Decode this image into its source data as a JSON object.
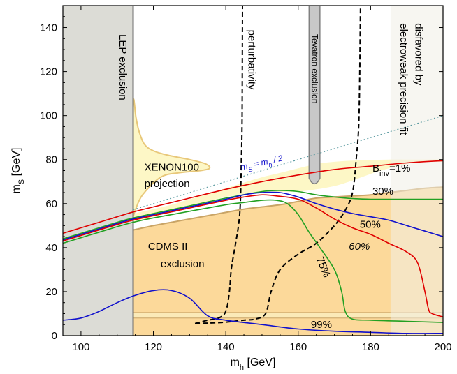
{
  "chart_data": {
    "type": "line",
    "xlabel": {
      "base": "m",
      "sub": "h",
      "unit": " [GeV]"
    },
    "ylabel": {
      "base": "m",
      "sub": "S",
      "unit": " [GeV]"
    },
    "xlim": [
      95,
      200
    ],
    "ylim": [
      0,
      150
    ],
    "x_ticks": [
      100,
      120,
      140,
      160,
      180,
      200
    ],
    "y_ticks": [
      0,
      20,
      40,
      60,
      80,
      100,
      120,
      140
    ],
    "grid": false,
    "colors": {
      "lep_fill": "#dcdcd6",
      "lep_edge": "#707070",
      "tev_fill": "#c8c8c8",
      "ewpt_fill": "#f0efe6",
      "xenon_fill": "#fdf7c6",
      "xenon_edge": "#e8c87a",
      "cdms_fill": "#fcd99a",
      "cdms_edge": "#c9a466",
      "cdms_band": "#fbeab8",
      "inv1": "#e00000",
      "inv30": "#22a022",
      "inv50": "#1010cc",
      "inv60": "#e00000",
      "inv75": "#22a022",
      "inv99": "#1010cc",
      "pert": "#000000",
      "ms_half": "#5a9aa0"
    },
    "regions": {
      "lep_exclusion": {
        "label": "LEP exclusion",
        "x": [
          95,
          114.4
        ]
      },
      "tevatron_exclusion": {
        "label": "Tevatron exclusion",
        "x": [
          163,
          166
        ],
        "bottom_y": 69
      },
      "ewpt_disfavored": {
        "label_lines": [
          "disfavored by",
          "electroweak precision fit"
        ],
        "x": [
          185.5,
          200
        ]
      },
      "xenon100_projection": {
        "label_lines": [
          "XENON100",
          "projection"
        ],
        "boundary": [
          [
            114.4,
            55
          ],
          [
            116,
            56
          ],
          [
            120,
            57.5
          ],
          [
            125,
            59.5
          ],
          [
            130,
            62
          ],
          [
            135,
            64.5
          ],
          [
            140,
            67
          ],
          [
            145,
            69.5
          ],
          [
            150,
            72
          ],
          [
            155,
            74
          ],
          [
            160,
            76
          ],
          [
            165,
            78
          ],
          [
            170,
            79
          ],
          [
            175,
            79.5
          ],
          [
            180,
            79.8
          ],
          [
            185,
            80
          ],
          [
            190,
            80
          ],
          [
            195,
            80
          ],
          [
            200,
            80
          ],
          [
            200,
            79
          ],
          [
            195,
            79
          ],
          [
            190,
            78
          ],
          [
            185,
            76
          ],
          [
            180,
            73.5
          ],
          [
            175,
            70.5
          ],
          [
            170,
            68
          ],
          [
            165,
            66.5
          ],
          [
            160,
            65.5
          ],
          [
            150,
            65
          ],
          [
            140,
            63
          ],
          [
            130,
            58.5
          ],
          [
            120,
            54
          ],
          [
            116,
            52.5
          ],
          [
            114.4,
            52
          ],
          [
            114.4,
            55
          ]
        ],
        "lobe": [
          [
            114.4,
            54
          ],
          [
            114.4,
            105
          ],
          [
            115.2,
            99
          ],
          [
            116,
            93
          ],
          [
            117.5,
            87
          ],
          [
            120,
            84
          ],
          [
            124,
            82
          ],
          [
            130,
            80
          ],
          [
            134.5,
            78
          ],
          [
            135.5,
            76
          ],
          [
            133,
            75
          ],
          [
            127,
            74
          ],
          [
            122,
            72
          ],
          [
            117,
            64
          ],
          [
            115,
            57
          ]
        ]
      },
      "cdms_ii_exclusion": {
        "label_lines": [
          "CDMS II",
          "exclusion"
        ],
        "boundary": [
          [
            114.4,
            48
          ],
          [
            120,
            50
          ],
          [
            125,
            51.5
          ],
          [
            130,
            53
          ],
          [
            135,
            54.5
          ],
          [
            140,
            56
          ],
          [
            145,
            57.5
          ],
          [
            150,
            58.5
          ],
          [
            155,
            59.5
          ],
          [
            160,
            61
          ],
          [
            165,
            62.5
          ],
          [
            170,
            63
          ],
          [
            175,
            63.5
          ],
          [
            180,
            64
          ],
          [
            185,
            65
          ],
          [
            190,
            66
          ],
          [
            195,
            67
          ],
          [
            200,
            67.5
          ],
          [
            200,
            0
          ],
          [
            114.4,
            0
          ]
        ],
        "band_y": [
          8,
          10.5
        ]
      },
      "perturbativity": {
        "label": "perturbativity",
        "left_curve": [
          [
            131.5,
            5.5
          ],
          [
            135,
            7
          ],
          [
            138,
            8
          ],
          [
            140,
            11
          ],
          [
            141,
            20
          ],
          [
            141.5,
            30
          ],
          [
            142.5,
            40
          ],
          [
            143.5,
            50
          ],
          [
            144,
            60
          ],
          [
            144.3,
            80
          ],
          [
            144.5,
            100
          ],
          [
            144.6,
            150
          ]
        ],
        "right_curve": [
          [
            131.5,
            5.5
          ],
          [
            139,
            6
          ],
          [
            145,
            7
          ],
          [
            148,
            7.5
          ],
          [
            151,
            10
          ],
          [
            152.5,
            20
          ],
          [
            155,
            30
          ],
          [
            160,
            37
          ],
          [
            165,
            42
          ],
          [
            170,
            50
          ],
          [
            173,
            57
          ],
          [
            175,
            65
          ],
          [
            176,
            80
          ],
          [
            176.8,
            100
          ],
          [
            177.2,
            150
          ]
        ]
      }
    },
    "series": [
      {
        "name": "B inv=1%",
        "key": "inv1",
        "points": [
          [
            95,
            46.5
          ],
          [
            100,
            49
          ],
          [
            105,
            51.5
          ],
          [
            110,
            54
          ],
          [
            114.4,
            56.2
          ],
          [
            120,
            58.5
          ],
          [
            130,
            62.5
          ],
          [
            140,
            66.5
          ],
          [
            150,
            70
          ],
          [
            160,
            73
          ],
          [
            170,
            75.5
          ],
          [
            180,
            77
          ],
          [
            190,
            78.5
          ],
          [
            200,
            79.5
          ]
        ]
      },
      {
        "name": "30%",
        "key": "inv30",
        "points": [
          [
            95,
            44
          ],
          [
            100,
            46.5
          ],
          [
            105,
            49
          ],
          [
            110,
            51.5
          ],
          [
            114.4,
            53.5
          ],
          [
            120,
            55.5
          ],
          [
            130,
            59
          ],
          [
            140,
            62.5
          ],
          [
            150,
            65.5
          ],
          [
            155,
            66
          ],
          [
            160,
            65.5
          ],
          [
            165,
            64
          ],
          [
            170,
            63
          ],
          [
            175,
            62.3
          ],
          [
            180,
            62
          ],
          [
            190,
            62
          ],
          [
            200,
            62
          ]
        ]
      },
      {
        "name": "50%",
        "key": "inv50",
        "points": [
          [
            95,
            43.5
          ],
          [
            100,
            46
          ],
          [
            105,
            48.5
          ],
          [
            110,
            51
          ],
          [
            114.4,
            53
          ],
          [
            120,
            55
          ],
          [
            130,
            58.5
          ],
          [
            140,
            62
          ],
          [
            145,
            64
          ],
          [
            150,
            65
          ],
          [
            155,
            65
          ],
          [
            160,
            63
          ],
          [
            165,
            60
          ],
          [
            170,
            57.5
          ],
          [
            175,
            55.5
          ],
          [
            180,
            54
          ],
          [
            185,
            52.5
          ],
          [
            190,
            50
          ],
          [
            195,
            47.5
          ],
          [
            200,
            45
          ]
        ]
      },
      {
        "name": "60%",
        "key": "inv60",
        "points": [
          [
            95,
            43
          ],
          [
            100,
            45.5
          ],
          [
            105,
            48
          ],
          [
            110,
            50.5
          ],
          [
            114.4,
            52.5
          ],
          [
            120,
            54.5
          ],
          [
            130,
            58
          ],
          [
            140,
            61.5
          ],
          [
            145,
            63
          ],
          [
            150,
            64
          ],
          [
            154,
            63.5
          ],
          [
            160,
            62
          ],
          [
            165,
            58
          ],
          [
            170,
            53
          ],
          [
            175,
            49
          ],
          [
            180,
            46
          ],
          [
            185,
            42
          ],
          [
            190,
            38
          ],
          [
            193,
            33
          ],
          [
            195,
            20
          ],
          [
            196,
            12
          ],
          [
            197,
            10
          ],
          [
            200,
            8.5
          ]
        ]
      },
      {
        "name": "75%",
        "key": "inv75",
        "points": [
          [
            95,
            42
          ],
          [
            100,
            44.5
          ],
          [
            105,
            47
          ],
          [
            110,
            49.5
          ],
          [
            114.4,
            51.5
          ],
          [
            120,
            53.5
          ],
          [
            130,
            56.5
          ],
          [
            140,
            59.5
          ],
          [
            145,
            60.5
          ],
          [
            150,
            61.5
          ],
          [
            154,
            61.5
          ],
          [
            157,
            60
          ],
          [
            160,
            55
          ],
          [
            163,
            47
          ],
          [
            166,
            40
          ],
          [
            170,
            30
          ],
          [
            172,
            20
          ],
          [
            173,
            11
          ],
          [
            175,
            7.5
          ],
          [
            180,
            7
          ],
          [
            190,
            6.5
          ],
          [
            200,
            6
          ]
        ]
      },
      {
        "name": "99%",
        "key": "inv99",
        "points": [
          [
            95,
            7
          ],
          [
            100,
            8
          ],
          [
            105,
            11
          ],
          [
            110,
            15
          ],
          [
            114.4,
            18
          ],
          [
            120,
            20.5
          ],
          [
            125,
            20.5
          ],
          [
            130,
            17
          ],
          [
            135,
            9
          ],
          [
            140,
            7
          ],
          [
            150,
            5
          ],
          [
            160,
            3
          ],
          [
            170,
            2
          ],
          [
            180,
            1.5
          ],
          [
            190,
            1
          ],
          [
            200,
            1
          ]
        ]
      }
    ],
    "ms_half_line": {
      "label_base": "m",
      "label_sub1": "S",
      "label_mid": " = m",
      "label_sub2": "h",
      "label_end": " / 2",
      "x_range": [
        114.4,
        200
      ]
    },
    "curve_labels": {
      "inv_prefix": "B",
      "inv_sub": "inv",
      "inv_value": "=1%",
      "p30": "30%",
      "p50": "50%",
      "p60": "60%",
      "p75": "75%",
      "p99": "99%"
    }
  }
}
